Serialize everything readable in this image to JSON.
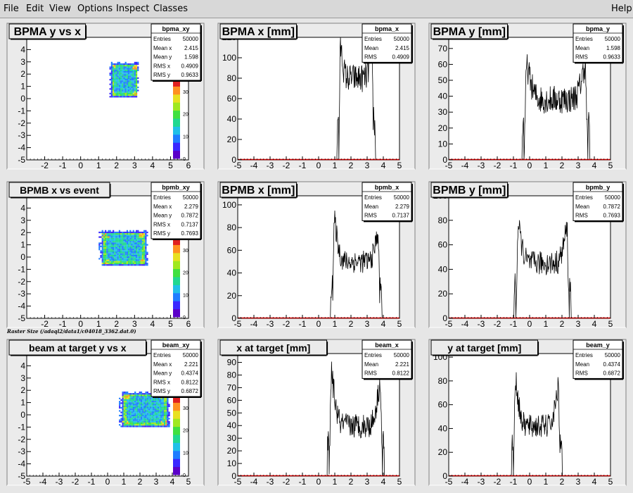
{
  "menubar": {
    "items": [
      "File",
      "Edit",
      "View",
      "Options",
      "Inspect",
      "Classes"
    ],
    "help": "Help"
  },
  "caption": "Raster Size (/adaql2/data1/c04018_3362.dat.0)",
  "colors": {
    "frame_bg": "#ebebeb",
    "plot_bg": "#ffffff",
    "hist_line": "#000000",
    "axis_red": "#cc0000"
  },
  "chart_data": [
    {
      "type": "heatmap",
      "title": "BPMA y vs x",
      "stats": {
        "name": "bpma_xy",
        "rows": [
          [
            "Entries",
            "50000"
          ],
          [
            "Mean x",
            "2.415"
          ],
          [
            "Mean y",
            "1.598"
          ],
          [
            "RMS x",
            "0.4909"
          ],
          [
            "RMS y",
            "0.9633"
          ]
        ]
      },
      "xlim": [
        -3,
        6
      ],
      "ylim": [
        -5,
        5
      ],
      "xticks": [
        -2,
        -1,
        0,
        1,
        2,
        3,
        4,
        5,
        6
      ],
      "yticks": [
        -5,
        -4,
        -3,
        -2,
        -1,
        0,
        1,
        2,
        3,
        4
      ],
      "region": {
        "x": [
          1.6,
          3.2
        ],
        "y": [
          0.1,
          3.0
        ]
      },
      "zticks": [
        0,
        10,
        20,
        30
      ]
    },
    {
      "type": "bar",
      "title": "BPMA x [mm]",
      "stats": {
        "name": "bpma_x",
        "rows": [
          [
            "Entries",
            "50000"
          ],
          [
            "Mean",
            "2.415"
          ],
          [
            "RMS",
            "0.4909"
          ]
        ]
      },
      "xlim": [
        -5,
        5
      ],
      "ylim": [
        0,
        120
      ],
      "xticks": [
        -5,
        -4,
        -3,
        -2,
        -1,
        0,
        1,
        2,
        3,
        4,
        5
      ],
      "yticks": [
        0,
        20,
        40,
        60,
        80,
        100,
        120
      ],
      "shape": {
        "x0": 1.25,
        "x1": 3.4,
        "peak_left": 117,
        "peak_right": 117,
        "center": 80,
        "noise": 14
      }
    },
    {
      "type": "bar",
      "title": "BPMA y [mm]",
      "stats": {
        "name": "bpma_y",
        "rows": [
          [
            "Entries",
            "50000"
          ],
          [
            "Mean",
            "1.598"
          ],
          [
            "RMS",
            "0.9633"
          ]
        ]
      },
      "xlim": [
        -5,
        5
      ],
      "ylim": [
        0,
        77
      ],
      "xticks": [
        -5,
        -4,
        -3,
        -2,
        -1,
        0,
        1,
        2,
        3,
        4,
        5
      ],
      "yticks": [
        0,
        10,
        20,
        30,
        40,
        50,
        60,
        70
      ],
      "shape": {
        "x0": -0.35,
        "x1": 3.6,
        "peak_left": 62,
        "peak_right": 63,
        "center": 38,
        "noise": 9
      }
    },
    {
      "type": "heatmap",
      "title": "BPMB x vs event",
      "stats": {
        "name": "bpmb_xy",
        "rows": [
          [
            "Entries",
            "50000"
          ],
          [
            "Mean x",
            "2.279"
          ],
          [
            "Mean y",
            "0.7872"
          ],
          [
            "RMS x",
            "0.7137"
          ],
          [
            "RMS y",
            "0.7693"
          ]
        ]
      },
      "xlim": [
        -3,
        6
      ],
      "ylim": [
        -5,
        5
      ],
      "xticks": [
        -2,
        -1,
        0,
        1,
        2,
        3,
        4,
        5,
        6
      ],
      "yticks": [
        -5,
        -4,
        -3,
        -2,
        -1,
        0,
        1,
        2,
        3,
        4
      ],
      "region": {
        "x": [
          1.0,
          3.7
        ],
        "y": [
          -0.7,
          2.2
        ]
      },
      "zticks": [
        0,
        10,
        20,
        30
      ]
    },
    {
      "type": "bar",
      "title": "BPMB x [mm]",
      "stats": {
        "name": "bpmb_x",
        "rows": [
          [
            "Entries",
            "50000"
          ],
          [
            "Mean",
            "2.279"
          ],
          [
            "RMS",
            "0.7137"
          ]
        ]
      },
      "xlim": [
        -5,
        5
      ],
      "ylim": [
        0,
        108
      ],
      "xticks": [
        -5,
        -4,
        -3,
        -2,
        -1,
        0,
        1,
        2,
        3,
        4,
        5
      ],
      "yticks": [
        0,
        20,
        40,
        60,
        80,
        100
      ],
      "shape": {
        "x0": 0.85,
        "x1": 3.8,
        "peak_left": 92,
        "peak_right": 80,
        "center": 50,
        "noise": 10
      }
    },
    {
      "type": "bar",
      "title": "BPMB y [mm]",
      "stats": {
        "name": "bpmb_y",
        "rows": [
          [
            "Entries",
            "50000"
          ],
          [
            "Mean",
            "0.7872"
          ],
          [
            "RMS",
            "0.7693"
          ]
        ]
      },
      "xlim": [
        -5,
        5
      ],
      "ylim": [
        0,
        100
      ],
      "xticks": [
        -5,
        -4,
        -3,
        -2,
        -1,
        0,
        1,
        2,
        3,
        4,
        5
      ],
      "yticks": [
        0,
        20,
        40,
        60,
        80,
        100
      ],
      "shape": {
        "x0": -0.85,
        "x1": 2.45,
        "peak_left": 80,
        "peak_right": 78,
        "center": 45,
        "noise": 10
      }
    },
    {
      "type": "heatmap",
      "title": "beam at target y vs x",
      "stats": {
        "name": "beam_xy",
        "rows": [
          [
            "Entries",
            "50000"
          ],
          [
            "Mean x",
            "2.221"
          ],
          [
            "Mean y",
            "0.4374"
          ],
          [
            "RMS x",
            "0.8122"
          ],
          [
            "RMS y",
            "0.6872"
          ]
        ]
      },
      "xlim": [
        -5,
        5
      ],
      "ylim": [
        -5,
        5
      ],
      "xticks": [
        -5,
        -4,
        -3,
        -2,
        -1,
        0,
        1,
        2,
        3,
        4,
        5
      ],
      "yticks": [
        -5,
        -4,
        -3,
        -2,
        -1,
        0,
        1,
        2,
        3,
        4
      ],
      "region": {
        "x": [
          0.7,
          3.8
        ],
        "y": [
          -1.0,
          1.9
        ]
      },
      "zticks": [
        0,
        10,
        20,
        30
      ]
    },
    {
      "type": "bar",
      "title": "x at target [mm]",
      "stats": {
        "name": "beam_x",
        "rows": [
          [
            "Entries",
            "50000"
          ],
          [
            "Mean",
            "2.221"
          ],
          [
            "RMS",
            "0.8122"
          ]
        ]
      },
      "xlim": [
        -5,
        5
      ],
      "ylim": [
        0,
        97
      ],
      "xticks": [
        -5,
        -4,
        -3,
        -2,
        -1,
        0,
        1,
        2,
        3,
        4,
        5
      ],
      "yticks": [
        0,
        10,
        20,
        30,
        40,
        50,
        60,
        70,
        80,
        90
      ],
      "shape": {
        "x0": 0.65,
        "x1": 3.95,
        "peak_left": 87,
        "peak_right": 80,
        "center": 40,
        "noise": 10
      }
    },
    {
      "type": "bar",
      "title": "y at target [mm]",
      "stats": {
        "name": "beam_y",
        "rows": [
          [
            "Entries",
            "50000"
          ],
          [
            "Mean",
            "0.4374"
          ],
          [
            "RMS",
            "0.6872"
          ]
        ]
      },
      "xlim": [
        -5,
        5
      ],
      "ylim": [
        0,
        103
      ],
      "xticks": [
        -5,
        -4,
        -3,
        -2,
        -1,
        0,
        1,
        2,
        3,
        4,
        5
      ],
      "yticks": [
        0,
        20,
        40,
        60,
        80,
        100
      ],
      "shape": {
        "x0": -1.0,
        "x1": 1.9,
        "peak_left": 88,
        "peak_right": 82,
        "center": 42,
        "noise": 10
      }
    }
  ]
}
